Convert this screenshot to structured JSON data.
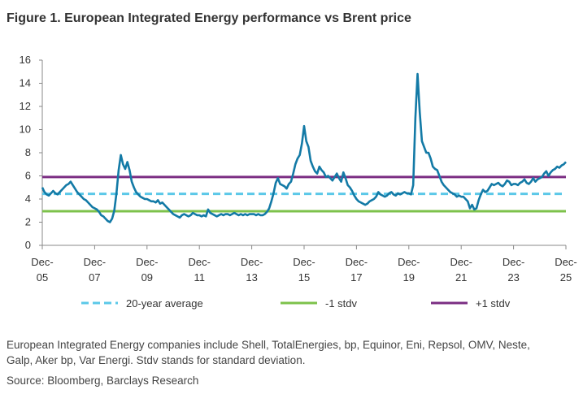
{
  "chart_data": {
    "type": "line",
    "title": "Figure 1. European Integrated Energy performance vs Brent price",
    "x": [
      "2005-12",
      "2006-01",
      "2006-02",
      "2006-03",
      "2006-04",
      "2006-05",
      "2006-06",
      "2006-07",
      "2006-08",
      "2006-09",
      "2006-10",
      "2006-11",
      "2006-12",
      "2007-01",
      "2007-02",
      "2007-03",
      "2007-04",
      "2007-05",
      "2007-06",
      "2007-07",
      "2007-08",
      "2007-09",
      "2007-10",
      "2007-11",
      "2007-12",
      "2008-01",
      "2008-02",
      "2008-03",
      "2008-04",
      "2008-05",
      "2008-06",
      "2008-07",
      "2008-08",
      "2008-09",
      "2008-10",
      "2008-11",
      "2008-12",
      "2009-01",
      "2009-02",
      "2009-03",
      "2009-04",
      "2009-05",
      "2009-06",
      "2009-07",
      "2009-08",
      "2009-09",
      "2009-10",
      "2009-11",
      "2009-12",
      "2010-01",
      "2010-02",
      "2010-03",
      "2010-04",
      "2010-05",
      "2010-06",
      "2010-07",
      "2010-08",
      "2010-09",
      "2010-10",
      "2010-11",
      "2010-12",
      "2011-01",
      "2011-02",
      "2011-03",
      "2011-04",
      "2011-05",
      "2011-06",
      "2011-07",
      "2011-08",
      "2011-09",
      "2011-10",
      "2011-11",
      "2011-12",
      "2012-01",
      "2012-02",
      "2012-03",
      "2012-04",
      "2012-05",
      "2012-06",
      "2012-07",
      "2012-08",
      "2012-09",
      "2012-10",
      "2012-11",
      "2012-12",
      "2013-01",
      "2013-02",
      "2013-03",
      "2013-04",
      "2013-05",
      "2013-06",
      "2013-07",
      "2013-08",
      "2013-09",
      "2013-10",
      "2013-11",
      "2013-12",
      "2014-01",
      "2014-02",
      "2014-03",
      "2014-04",
      "2014-05",
      "2014-06",
      "2014-07",
      "2014-08",
      "2014-09",
      "2014-10",
      "2014-11",
      "2014-12",
      "2015-01",
      "2015-02",
      "2015-03",
      "2015-04",
      "2015-05",
      "2015-06",
      "2015-07",
      "2015-08",
      "2015-09",
      "2015-10",
      "2015-11",
      "2015-12",
      "2016-01",
      "2016-02",
      "2016-03",
      "2016-04",
      "2016-05",
      "2016-06",
      "2016-07",
      "2016-08",
      "2016-09",
      "2016-10",
      "2016-11",
      "2016-12",
      "2017-01",
      "2017-02",
      "2017-03",
      "2017-04",
      "2017-05",
      "2017-06",
      "2017-07",
      "2017-08",
      "2017-09",
      "2017-10",
      "2017-11",
      "2017-12",
      "2018-01",
      "2018-02",
      "2018-03",
      "2018-04",
      "2018-05",
      "2018-06",
      "2018-07",
      "2018-08",
      "2018-09",
      "2018-10",
      "2018-11",
      "2018-12",
      "2019-01",
      "2019-02",
      "2019-03",
      "2019-04",
      "2019-05",
      "2019-06",
      "2019-07",
      "2019-08",
      "2019-09",
      "2019-10",
      "2019-11",
      "2019-12",
      "2020-01",
      "2020-02",
      "2020-03",
      "2020-04",
      "2020-05",
      "2020-06",
      "2020-07",
      "2020-08",
      "2020-09",
      "2020-10",
      "2020-11",
      "2020-12",
      "2021-01",
      "2021-02",
      "2021-03",
      "2021-04",
      "2021-05",
      "2021-06",
      "2021-07",
      "2021-08",
      "2021-09",
      "2021-10",
      "2021-11",
      "2021-12",
      "2022-01",
      "2022-02",
      "2022-03",
      "2022-04",
      "2022-05",
      "2022-06",
      "2022-07",
      "2022-08",
      "2022-09",
      "2022-10",
      "2022-11",
      "2022-12",
      "2023-01",
      "2023-02",
      "2023-03",
      "2023-04",
      "2023-05",
      "2023-06",
      "2023-07",
      "2023-08",
      "2023-09",
      "2023-10",
      "2023-11",
      "2023-12",
      "2024-01",
      "2024-02",
      "2024-03",
      "2024-04",
      "2024-05",
      "2024-06",
      "2024-07",
      "2024-08",
      "2024-09",
      "2024-10",
      "2024-11",
      "2024-12",
      "2025-01",
      "2025-02",
      "2025-03",
      "2025-04",
      "2025-05",
      "2025-06",
      "2025-07",
      "2025-08",
      "2025-09",
      "2025-10",
      "2025-11",
      "2025-12"
    ],
    "series": [
      {
        "color": "#137aa6",
        "values": [
          5.0,
          4.6,
          4.4,
          4.3,
          4.5,
          4.7,
          4.5,
          4.4,
          4.6,
          4.8,
          5.0,
          5.2,
          5.3,
          5.5,
          5.2,
          4.9,
          4.6,
          4.4,
          4.2,
          4.0,
          3.9,
          3.7,
          3.5,
          3.3,
          3.2,
          3.1,
          2.9,
          2.6,
          2.5,
          2.3,
          2.1,
          2.0,
          2.3,
          3.0,
          4.5,
          6.5,
          7.8,
          7.0,
          6.6,
          7.2,
          6.5,
          5.5,
          5.0,
          4.6,
          4.4,
          4.2,
          4.1,
          4.0,
          4.0,
          3.9,
          3.8,
          3.8,
          3.7,
          3.9,
          3.6,
          3.7,
          3.5,
          3.3,
          3.1,
          2.9,
          2.7,
          2.6,
          2.5,
          2.4,
          2.6,
          2.7,
          2.6,
          2.5,
          2.6,
          2.8,
          2.7,
          2.6,
          2.6,
          2.5,
          2.6,
          2.5,
          3.1,
          2.8,
          2.7,
          2.6,
          2.5,
          2.6,
          2.7,
          2.6,
          2.7,
          2.7,
          2.6,
          2.7,
          2.8,
          2.7,
          2.6,
          2.7,
          2.6,
          2.7,
          2.6,
          2.7,
          2.7,
          2.7,
          2.6,
          2.7,
          2.6,
          2.6,
          2.7,
          2.9,
          3.2,
          3.8,
          4.5,
          5.4,
          5.8,
          5.3,
          5.2,
          5.1,
          4.9,
          5.3,
          5.5,
          6.2,
          7.0,
          7.5,
          7.8,
          8.8,
          10.3,
          9.0,
          8.5,
          7.3,
          6.8,
          6.4,
          6.2,
          6.8,
          6.5,
          6.3,
          5.9,
          6.0,
          5.8,
          5.6,
          5.9,
          6.2,
          5.8,
          5.5,
          6.3,
          5.8,
          5.2,
          5.0,
          4.7,
          4.3,
          4.0,
          3.8,
          3.7,
          3.6,
          3.5,
          3.6,
          3.8,
          3.9,
          4.0,
          4.2,
          4.6,
          4.4,
          4.3,
          4.2,
          4.3,
          4.5,
          4.6,
          4.4,
          4.3,
          4.5,
          4.4,
          4.5,
          4.6,
          4.5,
          4.5,
          4.4,
          5.2,
          11.0,
          14.8,
          11.5,
          9.0,
          8.5,
          8.0,
          8.0,
          7.5,
          6.8,
          6.6,
          6.5,
          6.0,
          5.5,
          5.2,
          5.0,
          4.8,
          4.6,
          4.5,
          4.4,
          4.2,
          4.3,
          4.2,
          4.2,
          4.0,
          3.8,
          3.2,
          3.5,
          3.1,
          3.2,
          3.9,
          4.4,
          4.8,
          4.6,
          4.7,
          5.0,
          5.3,
          5.2,
          5.3,
          5.4,
          5.2,
          5.1,
          5.3,
          5.6,
          5.5,
          5.2,
          5.3,
          5.3,
          5.2,
          5.4,
          5.5,
          5.7,
          5.4,
          5.3,
          5.5,
          5.8,
          5.5,
          5.7,
          5.8,
          5.9,
          6.2,
          6.4,
          6.0,
          6.3,
          6.5,
          6.6,
          6.8,
          6.7,
          6.9,
          7.0,
          7.2
        ]
      }
    ],
    "reference_lines": [
      {
        "name": "20-year average",
        "value": 4.45,
        "color": "#5bc8e8",
        "dashed": true
      },
      {
        "name": "-1 stdv",
        "value": 2.95,
        "color": "#7dc24b",
        "dashed": false
      },
      {
        "name": "+1 stdv",
        "value": 5.9,
        "color": "#7b2e83",
        "dashed": false
      }
    ],
    "xlim": [
      "2005-12",
      "2025-12"
    ],
    "xticks": [
      {
        "value": "2005-12",
        "label": "Dec-05"
      },
      {
        "value": "2007-12",
        "label": "Dec-07"
      },
      {
        "value": "2009-12",
        "label": "Dec-09"
      },
      {
        "value": "2011-12",
        "label": "Dec-11"
      },
      {
        "value": "2013-12",
        "label": "Dec-13"
      },
      {
        "value": "2015-12",
        "label": "Dec-15"
      },
      {
        "value": "2017-12",
        "label": "Dec-17"
      },
      {
        "value": "2019-12",
        "label": "Dec-19"
      },
      {
        "value": "2021-12",
        "label": "Dec-21"
      },
      {
        "value": "2023-12",
        "label": "Dec-23"
      },
      {
        "value": "2025-12",
        "label": "Dec-25"
      }
    ],
    "ylim": [
      0,
      16
    ],
    "yticks": [
      0,
      2,
      4,
      6,
      8,
      10,
      12,
      14,
      16
    ],
    "grid": false,
    "footnote": [
      "European Integrated Energy companies include Shell, TotalEnergies, bp, Equinor, Eni, Repsol, OMV, Neste,",
      "Galp, Aker bp, Var Energi. Stdv stands for standard deviation."
    ],
    "source": "Source: Bloomberg, Barclays Research"
  }
}
